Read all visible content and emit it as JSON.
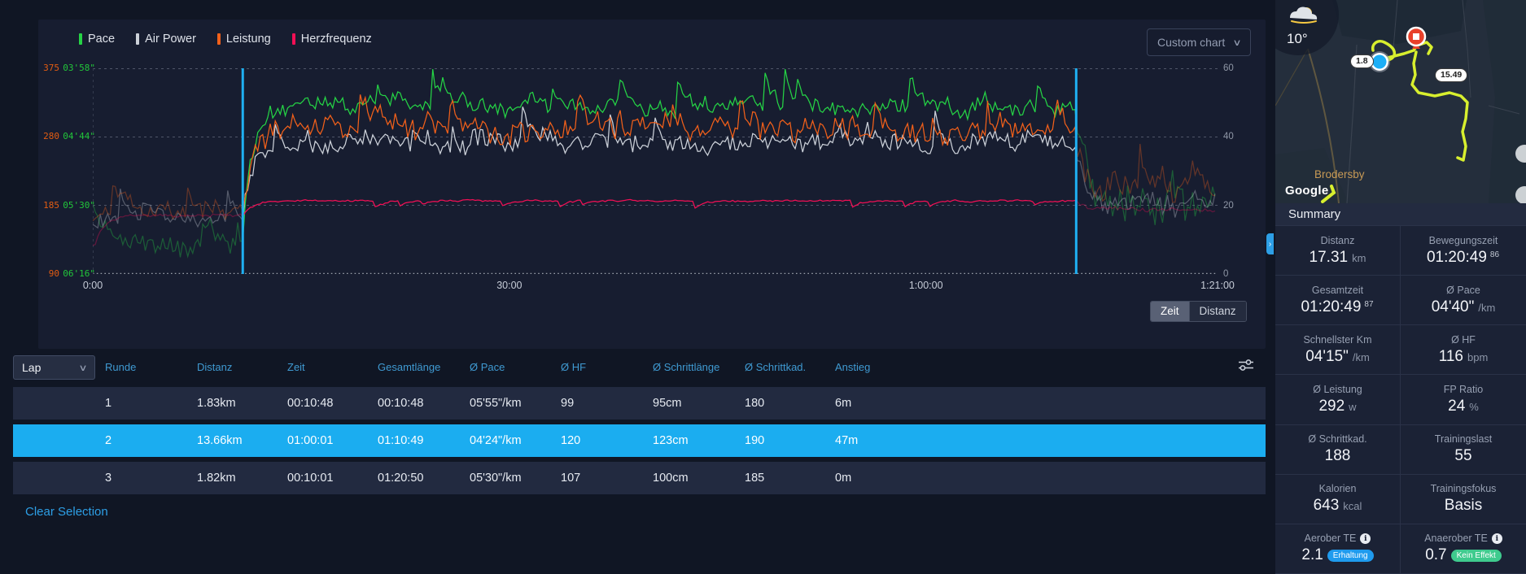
{
  "colors": {
    "accent_blue": "#1fb0f2",
    "selected_row": "#1badf0",
    "header_link": "#3f9ad2",
    "pace_green": "#25d345",
    "air_power_white": "#ccd1d9",
    "power_orange": "#f2601a",
    "hr_pink": "#f20f55",
    "badge_blue": "#1f9bee",
    "badge_green": "#3fcb8e"
  },
  "chart_data": {
    "type": "line",
    "title": "Custom chart",
    "x": {
      "total_minutes": 81,
      "ticks": [
        {
          "t": 0,
          "label": "0:00"
        },
        {
          "t": 30,
          "label": "30:00"
        },
        {
          "t": 60,
          "label": "1:00:00"
        },
        {
          "t": 81,
          "label": "1:21:00"
        }
      ]
    },
    "axes": {
      "power_left": {
        "unit": "W",
        "color": "#e25c12",
        "ticks": [
          "375",
          "280",
          "185",
          "90"
        ]
      },
      "pace_left": {
        "unit": "min/km",
        "color": "#22c53a",
        "ticks": [
          "03'58\"",
          "04'44\"",
          "05'30\"",
          "06'16\""
        ]
      },
      "right": {
        "color": "#8f97a6",
        "ticks": [
          "60",
          "40",
          "20",
          "0"
        ]
      }
    },
    "selection": {
      "from_min": 10.8,
      "to_min": 70.82,
      "color": "#1fb0f2"
    },
    "series": [
      {
        "name": "Pace",
        "color": "#25d345",
        "unit": "s/km",
        "spike": -22,
        "segments": [
          {
            "from_min": 0,
            "to_min": 10.8,
            "avg": 355,
            "spread": 15
          },
          {
            "from_min": 10.8,
            "to_min": 70.82,
            "avg": 264,
            "spread": 11
          },
          {
            "from_min": 70.82,
            "to_min": 81,
            "avg": 330,
            "spread": 27
          }
        ]
      },
      {
        "name": "Air Power",
        "color": "#ccd1d9",
        "unit": "W",
        "spike": 40,
        "segments": [
          {
            "from_min": 0,
            "to_min": 10.8,
            "avg": 168,
            "spread": 22
          },
          {
            "from_min": 10.8,
            "to_min": 70.82,
            "avg": 272,
            "spread": 26
          },
          {
            "from_min": 70.82,
            "to_min": 81,
            "avg": 190,
            "spread": 30
          }
        ]
      },
      {
        "name": "Leistung",
        "color": "#f2601a",
        "unit": "W",
        "spike": 48,
        "segments": [
          {
            "from_min": 0,
            "to_min": 10.8,
            "avg": 180,
            "spread": 24
          },
          {
            "from_min": 10.8,
            "to_min": 70.82,
            "avg": 293,
            "spread": 34
          },
          {
            "from_min": 70.82,
            "to_min": 81,
            "avg": 205,
            "spread": 36
          }
        ]
      },
      {
        "name": "Herzfrequenz",
        "color": "#f20f55",
        "unit": "bpm",
        "spike": -9,
        "segments": [
          {
            "from_min": 0,
            "to_min": 10.8,
            "avg": 99,
            "spread": 4
          },
          {
            "from_min": 10.8,
            "to_min": 70.82,
            "avg": 120,
            "spread": 2.5
          },
          {
            "from_min": 70.82,
            "to_min": 81,
            "avg": 107,
            "spread": 6
          }
        ]
      }
    ]
  },
  "chart_controls": {
    "chart_type_label": "Custom chart",
    "x_mode_buttons": [
      {
        "label": "Zeit",
        "active": true
      },
      {
        "label": "Distanz",
        "active": false
      }
    ]
  },
  "lap_table": {
    "selector_label": "Lap",
    "columns": [
      "Runde",
      "Distanz",
      "Zeit",
      "Gesamtlänge",
      "Ø Pace",
      "Ø HF",
      "Ø Schrittlänge",
      "Ø Schrittkad.",
      "Anstieg"
    ],
    "rows": [
      {
        "selected": false,
        "cells": [
          "1",
          "1.83km",
          "00:10:48",
          "00:10:48",
          "05'55\"/km",
          "99",
          "95cm",
          "180",
          "6m"
        ]
      },
      {
        "selected": true,
        "cells": [
          "2",
          "13.66km",
          "01:00:01",
          "01:10:49",
          "04'24\"/km",
          "120",
          "123cm",
          "190",
          "47m"
        ]
      },
      {
        "selected": false,
        "cells": [
          "3",
          "1.82km",
          "00:10:01",
          "01:20:50",
          "05'30\"/km",
          "107",
          "100cm",
          "185",
          "0m"
        ]
      }
    ],
    "clear_selection_label": "Clear Selection"
  },
  "map": {
    "temperature": "10°",
    "attribution": "Google",
    "place_label": "Brodersby",
    "start_marker_label": "1.8",
    "end_marker_label": "15.49",
    "route_color": "#d8ef2e"
  },
  "summary": {
    "title": "Summary",
    "tiles": [
      {
        "label": "Distanz",
        "value": "17.31",
        "unit": "km"
      },
      {
        "label": "Bewegungszeit",
        "value": "01:20:49",
        "sup": "86"
      },
      {
        "label": "Gesamtzeit",
        "value": "01:20:49",
        "sup": "87"
      },
      {
        "label": "Ø Pace",
        "value": "04'40\"",
        "unit": "/km"
      },
      {
        "label": "Schnellster Km",
        "value": "04'15\"",
        "unit": "/km"
      },
      {
        "label": "Ø HF",
        "value": "116",
        "unit": "bpm"
      },
      {
        "label": "Ø Leistung",
        "value": "292",
        "unit": "w"
      },
      {
        "label": "FP Ratio",
        "value": "24",
        "unit": "%"
      },
      {
        "label": "Ø Schrittkad.",
        "value": "188"
      },
      {
        "label": "Trainingslast",
        "value": "55"
      },
      {
        "label": "Kalorien",
        "value": "643",
        "unit": "kcal"
      },
      {
        "label": "Trainingsfokus",
        "value": "Basis"
      },
      {
        "label": "Aerober TE",
        "info": true,
        "value": "2.1",
        "badge": "Erhaltung",
        "badge_color": "#1f9bee"
      },
      {
        "label": "Anaerober TE",
        "info": true,
        "value": "0.7",
        "badge": "Kein Effekt",
        "badge_color": "#3fcb8e"
      }
    ]
  }
}
